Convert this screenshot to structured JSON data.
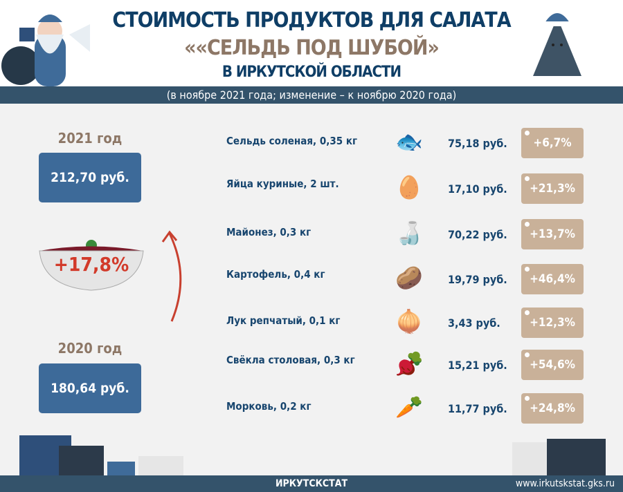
{
  "header": {
    "title_line1": "СТОИМОСТЬ ПРОДУКТОВ ДЛЯ САЛАТА",
    "title_line2": "««СЕЛЬДЬ ПОД ШУБОЙ»",
    "title_line3": "В ИРКУТСКОЙ ОБЛАСТИ",
    "subtitle": "(в ноябре 2021 года; изменение – к ноябрю 2020 года)"
  },
  "summary": {
    "year_2021": "2021 год",
    "total_2021": "212,70 руб.",
    "change": "+17,8%",
    "year_2020": "2020 год",
    "total_2020": "180,64 руб."
  },
  "items": [
    {
      "name": "Сельдь соленая, 0,35 кг",
      "icon": "fish-icon",
      "price": "75,18 руб.",
      "change": "+6,7%"
    },
    {
      "name": "Яйца куриные, 2 шт.",
      "icon": "egg-tray-icon",
      "price": "17,10 руб.",
      "change": "+21,3%"
    },
    {
      "name": "Майонез, 0,3 кг",
      "icon": "mayonnaise-icon",
      "price": "70,22 руб.",
      "change": "+13,7%"
    },
    {
      "name": "Картофель, 0,4 кг",
      "icon": "potato-icon",
      "price": "19,79 руб.",
      "change": "+46,4%"
    },
    {
      "name": "Лук репчатый, 0,1 кг",
      "icon": "onion-icon",
      "price": "3,43 руб.",
      "change": "+12,3%"
    },
    {
      "name": "Свёкла столовая, 0,3 кг",
      "icon": "beet-icon",
      "price": "15,21 руб.",
      "change": "+54,6%"
    },
    {
      "name": "Морковь, 0,2 кг",
      "icon": "carrot-icon",
      "price": "11,77 руб.",
      "change": "+24,8%"
    }
  ],
  "footer": {
    "org": "ИРКУТСКСТАТ",
    "url": "www.irkutskstat.gks.ru"
  },
  "colors": {
    "title": "#0f3e66",
    "accent_brown": "#8d7766",
    "box": "#3d6a99",
    "badge": "#c9b199",
    "bar": "#34536b",
    "change_red": "#d23a2a"
  }
}
